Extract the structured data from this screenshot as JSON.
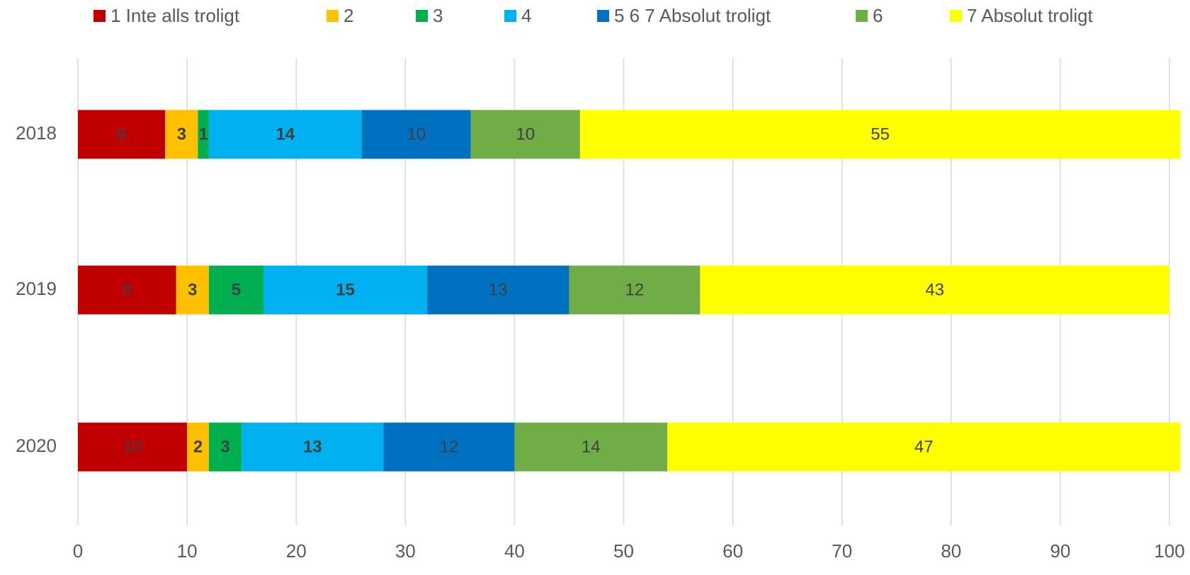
{
  "chart_data": {
    "type": "stacked_barh",
    "categories": [
      "2018",
      "2019",
      "2020"
    ],
    "series": [
      {
        "name": "1 Inte alls troligt",
        "color": "#c00000",
        "values": [
          8,
          9,
          10
        ]
      },
      {
        "name": "2",
        "color": "#ffc000",
        "values": [
          3,
          3,
          2
        ]
      },
      {
        "name": "3",
        "color": "#00b050",
        "values": [
          1,
          5,
          3
        ]
      },
      {
        "name": "4",
        "color": "#00b0f0",
        "values": [
          14,
          15,
          13
        ]
      },
      {
        "name": "5 6 7 Absolut troligt",
        "color": "#0070c0",
        "values": [
          10,
          13,
          12
        ]
      },
      {
        "name": "6",
        "color": "#70ad47",
        "values": [
          10,
          12,
          14
        ]
      },
      {
        "name": "7 Absolut troligt",
        "color": "#ffff00",
        "values": [
          55,
          43,
          47
        ]
      }
    ],
    "xlim": [
      0,
      100
    ],
    "xticks": [
      0,
      10,
      20,
      30,
      40,
      50,
      60,
      70,
      80,
      90,
      100
    ],
    "grid": true,
    "legend": "top"
  }
}
